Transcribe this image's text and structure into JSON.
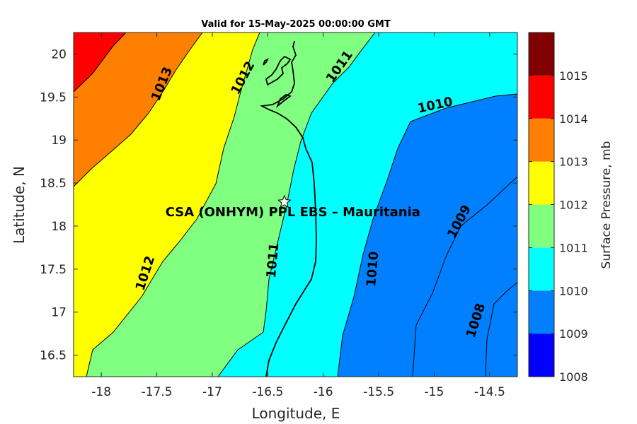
{
  "title": "Valid for 15-May-2025 00:00:00 GMT",
  "x_axis": {
    "label": "Longitude, E",
    "ticks": [
      "-18",
      "-17.5",
      "-17",
      "-16.5",
      "-16",
      "-15.5",
      "-15",
      "-14.5"
    ],
    "tick_values": [
      -18,
      -17.5,
      -17,
      -16.5,
      -16,
      -15.5,
      -15,
      -14.5
    ],
    "range": [
      -18.25,
      -14.25
    ]
  },
  "y_axis": {
    "label": "Latitude, N",
    "ticks": [
      "16.5",
      "17",
      "17.5",
      "18",
      "18.5",
      "19",
      "19.5",
      "20"
    ],
    "tick_values": [
      16.5,
      17,
      17.5,
      18,
      18.5,
      19,
      19.5,
      20
    ],
    "range": [
      16.25,
      20.25
    ]
  },
  "colorbar": {
    "label": "Surface Pressure, mb",
    "ticks": [
      "1008",
      "1009",
      "1010",
      "1011",
      "1012",
      "1013",
      "1014",
      "1015"
    ],
    "colors": [
      "#0000ff",
      "#0080ff",
      "#00ffff",
      "#80ff80",
      "#ffff00",
      "#ff8000",
      "#ff0000",
      "#800000"
    ]
  },
  "site": {
    "label": "CSA (ONHYM) PPL EBS  – Mauritania",
    "marker": "star-icon",
    "lon": -16.35,
    "lat": 18.28
  },
  "contour_labels": [
    {
      "text": "1013",
      "lon": -17.45,
      "lat": 19.65,
      "angle": -68
    },
    {
      "text": "1012",
      "lon": -16.72,
      "lat": 19.72,
      "angle": -62
    },
    {
      "text": "1011",
      "lon": -15.85,
      "lat": 19.85,
      "angle": -55
    },
    {
      "text": "1010",
      "lon": -14.99,
      "lat": 19.4,
      "angle": -12
    },
    {
      "text": "1012",
      "lon": -17.6,
      "lat": 17.45,
      "angle": -72
    },
    {
      "text": "1011",
      "lon": -16.45,
      "lat": 17.6,
      "angle": -85
    },
    {
      "text": "1010",
      "lon": -15.55,
      "lat": 17.5,
      "angle": -85
    },
    {
      "text": "1009",
      "lon": -14.77,
      "lat": 18.05,
      "angle": -62
    },
    {
      "text": "1008",
      "lon": -14.62,
      "lat": 16.9,
      "angle": -72
    }
  ]
}
